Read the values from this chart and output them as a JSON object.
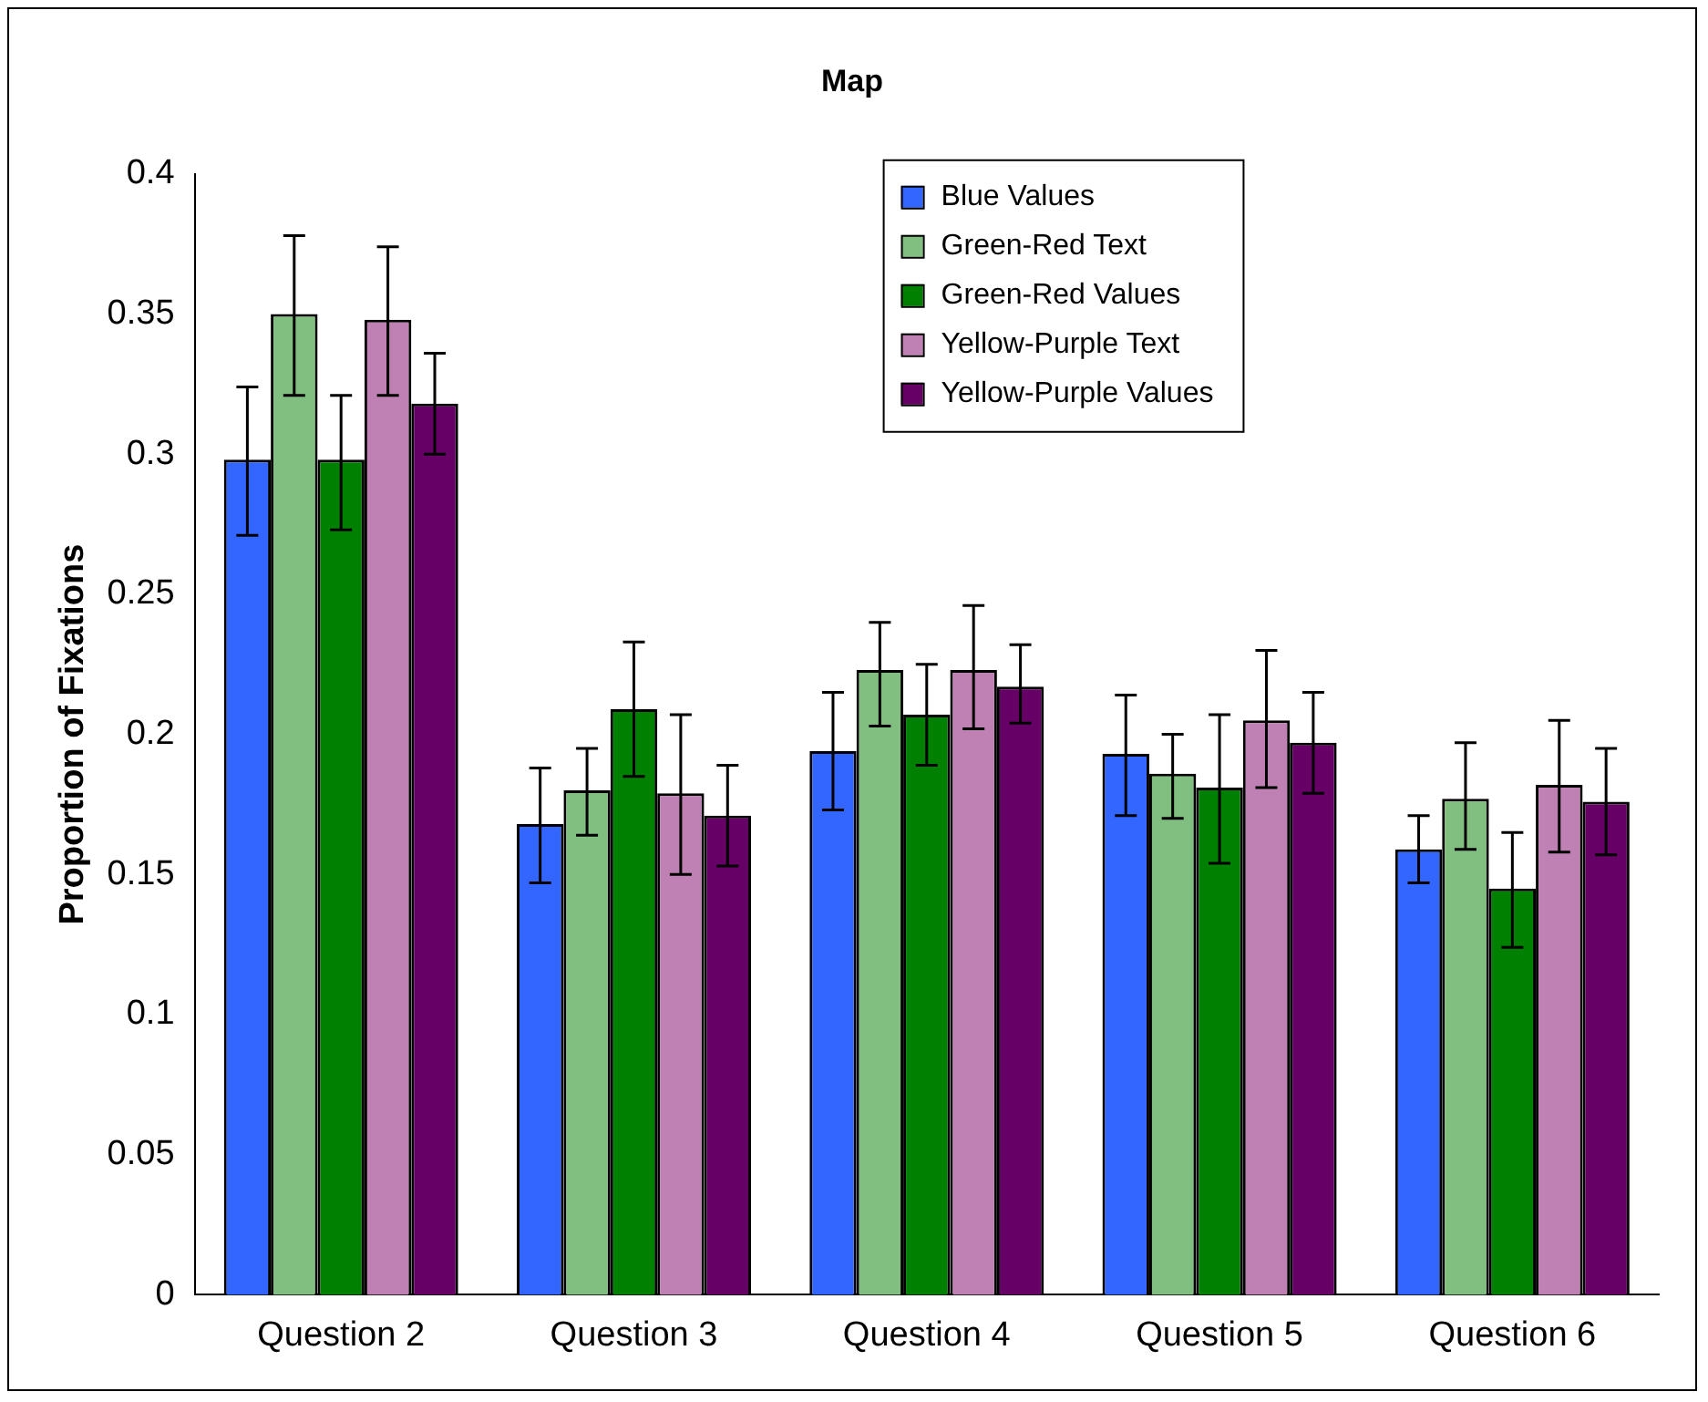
{
  "chart_data": {
    "type": "bar",
    "title": "Map",
    "ylabel": "Proportion of Fixations",
    "categories": [
      "Question 2",
      "Question 3",
      "Question 4",
      "Question 5",
      "Question 6"
    ],
    "series": [
      {
        "name": "Blue Values",
        "color": "#3366ff",
        "values": [
          0.298,
          0.168,
          0.194,
          0.193,
          0.159
        ],
        "errors": [
          [
            0.271,
            0.324
          ],
          [
            0.147,
            0.188
          ],
          [
            0.173,
            0.215
          ],
          [
            0.171,
            0.214
          ],
          [
            0.147,
            0.171
          ]
        ]
      },
      {
        "name": "Green-Red Text",
        "color": "#80bf80",
        "values": [
          0.35,
          0.18,
          0.223,
          0.186,
          0.177
        ],
        "errors": [
          [
            0.321,
            0.378
          ],
          [
            0.164,
            0.195
          ],
          [
            0.203,
            0.24
          ],
          [
            0.17,
            0.2
          ],
          [
            0.159,
            0.197
          ]
        ]
      },
      {
        "name": "Green-Red Values",
        "color": "#008000",
        "values": [
          0.298,
          0.209,
          0.207,
          0.181,
          0.145
        ],
        "errors": [
          [
            0.273,
            0.321
          ],
          [
            0.185,
            0.233
          ],
          [
            0.189,
            0.225
          ],
          [
            0.154,
            0.207
          ],
          [
            0.124,
            0.165
          ]
        ]
      },
      {
        "name": "Yellow-Purple Text",
        "color": "#bf80b3",
        "values": [
          0.348,
          0.179,
          0.223,
          0.205,
          0.182
        ],
        "errors": [
          [
            0.321,
            0.374
          ],
          [
            0.15,
            0.207
          ],
          [
            0.202,
            0.246
          ],
          [
            0.181,
            0.23
          ],
          [
            0.158,
            0.205
          ]
        ]
      },
      {
        "name": "Yellow-Purple Values",
        "color": "#660066",
        "values": [
          0.318,
          0.171,
          0.217,
          0.197,
          0.176
        ],
        "errors": [
          [
            0.3,
            0.336
          ],
          [
            0.153,
            0.189
          ],
          [
            0.204,
            0.232
          ],
          [
            0.179,
            0.215
          ],
          [
            0.157,
            0.195
          ]
        ]
      }
    ],
    "ylim": [
      0,
      0.4
    ],
    "yticks": [
      0,
      0.05,
      0.1,
      0.15,
      0.2,
      0.25,
      0.3,
      0.35,
      0.4
    ],
    "grid": false,
    "legend": "top right"
  }
}
